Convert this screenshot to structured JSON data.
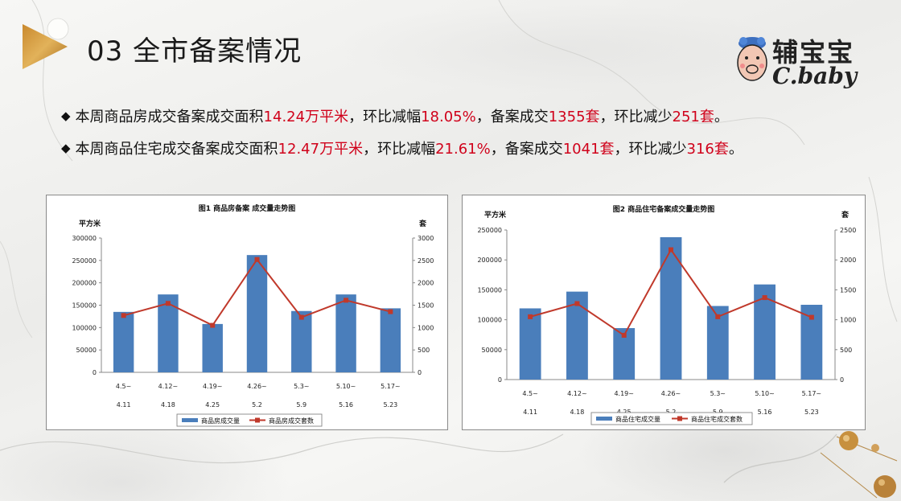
{
  "page": {
    "title": "03 全市备案情况",
    "brand_cn": "辅宝宝",
    "brand_en": "C.baby"
  },
  "bullets": [
    [
      {
        "t": "本周商品房成交备案成交面积",
        "hl": false
      },
      {
        "t": "14.24万平米",
        "hl": true
      },
      {
        "t": "，环比减幅",
        "hl": false
      },
      {
        "t": "18.05%",
        "hl": true
      },
      {
        "t": "，备案成交",
        "hl": false
      },
      {
        "t": "1355套",
        "hl": true
      },
      {
        "t": "，环比减少",
        "hl": false
      },
      {
        "t": "251套",
        "hl": true
      },
      {
        "t": "。",
        "hl": false
      }
    ],
    [
      {
        "t": "本周商品住宅成交备案成交面积",
        "hl": false
      },
      {
        "t": "12.47万平米",
        "hl": true
      },
      {
        "t": "，环比减幅",
        "hl": false
      },
      {
        "t": "21.61%",
        "hl": true
      },
      {
        "t": "，备案成交",
        "hl": false
      },
      {
        "t": "1041套",
        "hl": true
      },
      {
        "t": "，环比减少",
        "hl": false
      },
      {
        "t": "316套",
        "hl": true
      },
      {
        "t": "。",
        "hl": false
      }
    ]
  ],
  "colors": {
    "bar": "#4a7ebb",
    "line": "#c0392b",
    "highlight": "#d0021b"
  },
  "chart_data": [
    {
      "type": "bar+line",
      "title": "图1    商品房备案 成交量走势图",
      "ylabel": "平方米",
      "y2label": "套",
      "categories": [
        "4.5~4.11",
        "4.12~4.18",
        "4.19~4.25",
        "4.26~5.2",
        "5.3~5.9",
        "5.10~5.16",
        "5.17~5.23"
      ],
      "cat_top": [
        "4.5~",
        "4.12~",
        "4.19~",
        "4.26~",
        "5.3~",
        "5.10~",
        "5.17~"
      ],
      "cat_bottom": [
        "4.11",
        "4.18",
        "4.25",
        "5.2",
        "5.9",
        "5.16",
        "5.23"
      ],
      "ylim": [
        0,
        300000
      ],
      "y2lim": [
        0,
        3000
      ],
      "yticks": [
        "0",
        "50000",
        "100000",
        "150000",
        "200000",
        "250000",
        "300000"
      ],
      "y2ticks": [
        "0",
        "500",
        "1000",
        "1500",
        "2000",
        "2500",
        "3000"
      ],
      "series": [
        {
          "name": "商品房成交量",
          "kind": "bar",
          "axis": "left",
          "values": [
            135000,
            174000,
            108000,
            262000,
            137000,
            174000,
            143000
          ]
        },
        {
          "name": "商品房成交套数",
          "kind": "line",
          "axis": "right",
          "values": [
            1270,
            1540,
            1050,
            2520,
            1230,
            1610,
            1355
          ]
        }
      ],
      "legend": "bottom",
      "grid": false
    },
    {
      "type": "bar+line",
      "title": "图2    商品住宅备案成交量走势图",
      "ylabel": "平方米",
      "y2label": "套",
      "categories": [
        "4.5~4.11",
        "4.12~4.18",
        "4.19~4.25",
        "4.26~5.2",
        "5.3~5.9",
        "5.10~5.16",
        "5.17~5.23"
      ],
      "cat_top": [
        "4.5~",
        "4.12~",
        "4.19~",
        "4.26~",
        "5.3~",
        "5.10~",
        "5.17~"
      ],
      "cat_bottom": [
        "4.11",
        "4.18",
        "4.25",
        "5.2",
        "5.9",
        "5.16",
        "5.23"
      ],
      "ylim": [
        0,
        250000
      ],
      "y2lim": [
        0,
        2500
      ],
      "yticks": [
        "0",
        "50000",
        "100000",
        "150000",
        "200000",
        "250000"
      ],
      "y2ticks": [
        "0",
        "500",
        "1000",
        "1500",
        "2000",
        "2500"
      ],
      "series": [
        {
          "name": "商品住宅成交量",
          "kind": "bar",
          "axis": "left",
          "values": [
            119000,
            147000,
            86000,
            238000,
            123000,
            159000,
            125000
          ]
        },
        {
          "name": "商品住宅成交套数",
          "kind": "line",
          "axis": "right",
          "values": [
            1050,
            1270,
            740,
            2170,
            1050,
            1370,
            1041
          ]
        }
      ],
      "legend": "bottom",
      "grid": false
    }
  ]
}
